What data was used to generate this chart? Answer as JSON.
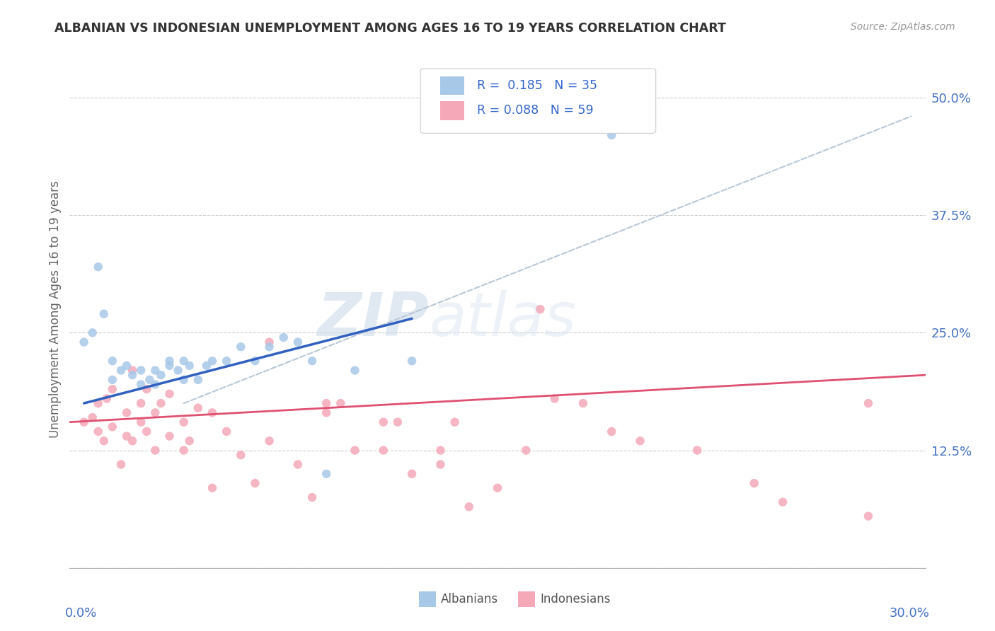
{
  "title": "ALBANIAN VS INDONESIAN UNEMPLOYMENT AMONG AGES 16 TO 19 YEARS CORRELATION CHART",
  "source": "Source: ZipAtlas.com",
  "xlim": [
    0.0,
    0.3
  ],
  "ylim": [
    0.0,
    0.55
  ],
  "ylabel_ticks": [
    0.0,
    0.125,
    0.25,
    0.375,
    0.5
  ],
  "ylabel_labels": [
    "",
    "12.5%",
    "25.0%",
    "37.5%",
    "50.0%"
  ],
  "watermark_zip": "ZIP",
  "watermark_atlas": "atlas",
  "albanian_color": "#a8c8e8",
  "indonesian_color": "#f4a8b8",
  "albanian_line_color": "#3060c0",
  "indonesian_line_color": "#e05070",
  "dashed_line_color": "#b8c8d8",
  "albanians_x": [
    0.005,
    0.008,
    0.01,
    0.012,
    0.015,
    0.015,
    0.018,
    0.02,
    0.022,
    0.025,
    0.025,
    0.028,
    0.03,
    0.03,
    0.032,
    0.035,
    0.035,
    0.038,
    0.04,
    0.04,
    0.042,
    0.045,
    0.048,
    0.05,
    0.055,
    0.06,
    0.065,
    0.07,
    0.075,
    0.08,
    0.085,
    0.09,
    0.1,
    0.12,
    0.19
  ],
  "albanians_y": [
    0.24,
    0.25,
    0.32,
    0.27,
    0.2,
    0.22,
    0.21,
    0.215,
    0.205,
    0.195,
    0.21,
    0.2,
    0.195,
    0.21,
    0.205,
    0.215,
    0.22,
    0.21,
    0.22,
    0.2,
    0.215,
    0.2,
    0.215,
    0.22,
    0.22,
    0.235,
    0.22,
    0.235,
    0.245,
    0.24,
    0.22,
    0.1,
    0.21,
    0.22,
    0.46
  ],
  "indonesians_x": [
    0.005,
    0.008,
    0.01,
    0.01,
    0.012,
    0.013,
    0.015,
    0.015,
    0.018,
    0.02,
    0.02,
    0.022,
    0.022,
    0.025,
    0.025,
    0.027,
    0.027,
    0.03,
    0.03,
    0.032,
    0.035,
    0.035,
    0.04,
    0.04,
    0.042,
    0.045,
    0.05,
    0.05,
    0.055,
    0.06,
    0.065,
    0.07,
    0.07,
    0.08,
    0.085,
    0.09,
    0.1,
    0.11,
    0.12,
    0.13,
    0.14,
    0.15,
    0.16,
    0.18,
    0.19,
    0.2,
    0.22,
    0.24,
    0.25,
    0.165,
    0.17,
    0.13,
    0.135,
    0.09,
    0.095,
    0.11,
    0.115,
    0.28,
    0.28
  ],
  "indonesians_y": [
    0.155,
    0.16,
    0.145,
    0.175,
    0.135,
    0.18,
    0.15,
    0.19,
    0.11,
    0.14,
    0.165,
    0.135,
    0.21,
    0.155,
    0.175,
    0.145,
    0.19,
    0.125,
    0.165,
    0.175,
    0.14,
    0.185,
    0.125,
    0.155,
    0.135,
    0.17,
    0.085,
    0.165,
    0.145,
    0.12,
    0.09,
    0.135,
    0.24,
    0.11,
    0.075,
    0.165,
    0.125,
    0.125,
    0.1,
    0.125,
    0.065,
    0.085,
    0.125,
    0.175,
    0.145,
    0.135,
    0.125,
    0.09,
    0.07,
    0.275,
    0.18,
    0.11,
    0.155,
    0.175,
    0.175,
    0.155,
    0.155,
    0.175,
    0.055
  ],
  "alb_trend_x": [
    0.005,
    0.12
  ],
  "alb_trend_y": [
    0.175,
    0.265
  ],
  "ind_trend_x": [
    0.0,
    0.3
  ],
  "ind_trend_y": [
    0.155,
    0.205
  ],
  "dash_trend_x": [
    0.04,
    0.295
  ],
  "dash_trend_y": [
    0.175,
    0.48
  ]
}
